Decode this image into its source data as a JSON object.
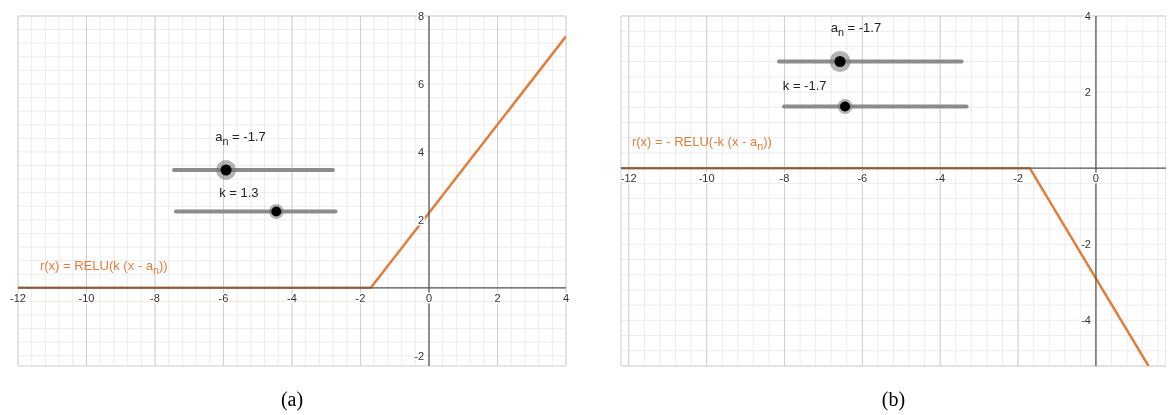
{
  "chart_data": [
    {
      "type": "line",
      "x": [
        -12,
        -1.7,
        4
      ],
      "series": [
        {
          "name": "r(x) = RELU(k (x - a$_{n}$))",
          "color": "#e27d3c",
          "values": [
            0,
            0,
            7.4
          ]
        }
      ],
      "xlim": [
        -12,
        4
      ],
      "ylim": [
        -2.3,
        8
      ],
      "xticks": [
        -12,
        -10,
        -8,
        -6,
        -4,
        -2,
        0,
        2,
        4
      ],
      "yticks": [
        -2,
        2,
        4,
        6,
        8
      ],
      "grid": true,
      "annotations": [
        "a$_{n}$ = -1.7",
        "k = 1.3",
        "(a)"
      ]
    },
    {
      "type": "line",
      "x": [
        -12.2,
        -1.7,
        1.35
      ],
      "series": [
        {
          "name": "r(x) = - RELU(-k (x - a$_{n}$))",
          "color": "#e27d3c",
          "values": [
            0,
            0,
            -5.2
          ]
        }
      ],
      "xlim": [
        -12.2,
        1.8
      ],
      "ylim": [
        -5.2,
        4
      ],
      "xticks": [
        -12,
        -10,
        -8,
        -6,
        -4,
        -2,
        0
      ],
      "yticks": [
        -4,
        -2,
        2,
        4
      ],
      "grid": true,
      "annotations": [
        "a$_{n}$ = -1.7",
        "k = -1.7",
        "(b)"
      ]
    }
  ]
}
